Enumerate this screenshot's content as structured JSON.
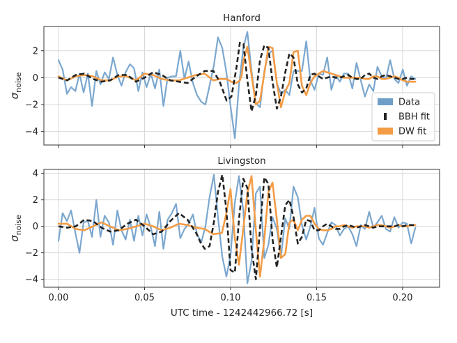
{
  "chart_data": [
    {
      "type": "line",
      "title": "Hanford",
      "ylabel_main": "σ",
      "ylabel_sub": "noise",
      "ylim": [
        -5.0,
        3.8
      ],
      "yticks": [
        -4,
        -2,
        0,
        2
      ],
      "xlim": [
        -0.0085,
        0.2215
      ],
      "xticks": [
        0.0,
        0.05,
        0.1,
        0.15,
        0.2
      ],
      "grid": true,
      "legend": {
        "placement": "lower-right",
        "entries": [
          {
            "label": "Data",
            "color": "#6f9ec9",
            "style": "patch"
          },
          {
            "label": "BBH fit",
            "color": "#222222",
            "style": "dashed"
          },
          {
            "label": "DW fit",
            "color": "#f39c45",
            "style": "patch"
          }
        ]
      },
      "series": [
        {
          "name": "Data",
          "color": "#7ba7cf",
          "width": 2.2,
          "dash": "",
          "x": [
            0.0,
            0.0024,
            0.0049,
            0.0073,
            0.0098,
            0.0122,
            0.0146,
            0.0171,
            0.0195,
            0.022,
            0.0244,
            0.0268,
            0.0293,
            0.0317,
            0.0342,
            0.0366,
            0.039,
            0.0415,
            0.0439,
            0.0464,
            0.0488,
            0.0512,
            0.0537,
            0.0561,
            0.0586,
            0.061,
            0.0634,
            0.0659,
            0.0683,
            0.0708,
            0.0732,
            0.0756,
            0.0781,
            0.0805,
            0.083,
            0.0854,
            0.0878,
            0.0903,
            0.0927,
            0.0952,
            0.0976,
            0.1,
            0.1025,
            0.1049,
            0.1074,
            0.1098,
            0.1122,
            0.1147,
            0.1171,
            0.1196,
            0.122,
            0.1244,
            0.1269,
            0.1293,
            0.1318,
            0.1342,
            0.1366,
            0.1391,
            0.1415,
            0.144,
            0.1464,
            0.1488,
            0.1513,
            0.1537,
            0.1562,
            0.1586,
            0.161,
            0.1635,
            0.1659,
            0.1684,
            0.1708,
            0.1732,
            0.1757,
            0.1781,
            0.1806,
            0.183,
            0.1854,
            0.1879,
            0.1903,
            0.1928,
            0.1952,
            0.1976,
            0.2001,
            0.2025,
            0.205,
            0.2074
          ],
          "y": [
            1.3,
            0.6,
            -1.2,
            -0.7,
            -1.0,
            0.3,
            -1.1,
            0.3,
            -2.1,
            0.5,
            -0.5,
            0.4,
            -0.1,
            1.5,
            0.2,
            -0.6,
            0.4,
            1.0,
            0.7,
            -1.0,
            0.4,
            -0.7,
            0.3,
            -0.8,
            0.6,
            -2.1,
            0.0,
            0.1,
            0.1,
            2.0,
            -0.1,
            1.2,
            -0.4,
            -1.3,
            -1.8,
            -2.0,
            -0.6,
            0.9,
            3.0,
            2.2,
            0.4,
            -2.1,
            -4.5,
            -0.6,
            2.2,
            3.4,
            0.5,
            -1.9,
            -2.2,
            0.5,
            1.8,
            2.0,
            -0.4,
            -1.2,
            -0.9,
            -1.3,
            0.5,
            0.5,
            0.5,
            2.7,
            -0.2,
            -0.9,
            0.3,
            0.2,
            1.5,
            -0.9,
            0.2,
            -0.3,
            0.3,
            0.3,
            -0.8,
            1.1,
            -0.2,
            -1.4,
            -0.5,
            -1.0,
            0.8,
            0.1,
            -0.1,
            1.3,
            -0.1,
            -0.4,
            0.6,
            -0.6,
            0.1,
            -0.1
          ]
        },
        {
          "name": "DW fit",
          "color": "#f39c45",
          "width": 2.6,
          "dash": "",
          "x": [
            0.0,
            0.005,
            0.01,
            0.015,
            0.02,
            0.025,
            0.03,
            0.035,
            0.04,
            0.045,
            0.05,
            0.055,
            0.06,
            0.065,
            0.07,
            0.075,
            0.08,
            0.085,
            0.09,
            0.0937,
            0.0977,
            0.1005,
            0.1034,
            0.1054,
            0.1065,
            0.1075,
            0.1098,
            0.1122,
            0.1147,
            0.1171,
            0.1196,
            0.122,
            0.1244,
            0.1269,
            0.1293,
            0.1318,
            0.1342,
            0.1366,
            0.1391,
            0.1415,
            0.144,
            0.1464,
            0.1488,
            0.1513,
            0.1537,
            0.1562,
            0.1586,
            0.161,
            0.1635,
            0.1659,
            0.1684,
            0.1708,
            0.1732,
            0.1757,
            0.1781,
            0.1806,
            0.183,
            0.1854,
            0.1879,
            0.1903,
            0.1928,
            0.1952,
            0.1976,
            0.2001,
            0.2025,
            0.205,
            0.2074
          ],
          "y": [
            0.1,
            -0.2,
            0.1,
            0.2,
            0.1,
            -0.2,
            -0.2,
            0.1,
            0.1,
            -0.2,
            0.3,
            0.2,
            -0.1,
            -0.2,
            -0.2,
            0.0,
            0.2,
            0.3,
            -0.2,
            -0.1,
            -0.1,
            -0.3,
            -0.4,
            -0.2,
            0.2,
            1.3,
            2.3,
            0.2,
            -2.0,
            -1.7,
            0.3,
            2.3,
            2.2,
            -0.4,
            -2.2,
            -1.0,
            -0.4,
            1.9,
            2.0,
            -0.6,
            -1.3,
            -0.4,
            0.1,
            0.3,
            0.5,
            0.4,
            0.3,
            0.2,
            0.1,
            0.0,
            0.0,
            0.0,
            0.0,
            0.0,
            -0.1,
            -0.1,
            0.1,
            0.1,
            -0.1,
            -0.1,
            0.0,
            0.1,
            0.0,
            -0.2,
            -0.3,
            -0.3,
            -0.3
          ]
        },
        {
          "name": "BBH fit",
          "color": "#222222",
          "width": 2.6,
          "dash": "7,4",
          "x": [
            0.0,
            0.005,
            0.01,
            0.015,
            0.02,
            0.025,
            0.03,
            0.035,
            0.04,
            0.045,
            0.05,
            0.055,
            0.06,
            0.065,
            0.07,
            0.075,
            0.08,
            0.085,
            0.09,
            0.0937,
            0.0977,
            0.1005,
            0.1034,
            0.1054,
            0.1075,
            0.1098,
            0.1122,
            0.1147,
            0.1171,
            0.1196,
            0.122,
            0.1244,
            0.1269,
            0.1293,
            0.1318,
            0.1342,
            0.1366,
            0.1391,
            0.1415,
            0.144,
            0.1464,
            0.1488,
            0.1513,
            0.1537,
            0.1562,
            0.1586,
            0.161,
            0.1635,
            0.1659,
            0.1684,
            0.1708,
            0.1732,
            0.1757,
            0.1781,
            0.1806,
            0.183,
            0.1854,
            0.1879,
            0.1903,
            0.1928,
            0.1952,
            0.1976,
            0.2001,
            0.2025,
            0.205,
            0.2074
          ],
          "y": [
            0.0,
            -0.2,
            0.2,
            0.3,
            -0.1,
            -0.3,
            -0.2,
            0.2,
            0.2,
            -0.3,
            0.0,
            0.4,
            0.2,
            -0.2,
            -0.3,
            -0.4,
            0.1,
            0.5,
            0.5,
            -0.3,
            -1.7,
            -1.4,
            0.7,
            2.6,
            2.5,
            -0.2,
            -2.5,
            -1.3,
            1.3,
            2.4,
            2.2,
            -0.3,
            -2.3,
            -1.4,
            0.4,
            1.8,
            1.5,
            -0.5,
            -1.1,
            -0.8,
            0.2,
            0.3,
            0.1,
            -0.1,
            0.0,
            0.1,
            0.0,
            0.0,
            0.1,
            0.2,
            0.0,
            -0.1,
            -0.1,
            0.2,
            0.3,
            0.0,
            -0.1,
            0.1,
            0.2,
            0.1,
            0.0,
            -0.1,
            -0.1,
            0.0,
            -0.1,
            -0.1
          ]
        }
      ]
    },
    {
      "type": "line",
      "title": "Livingston",
      "ylabel_main": "σ",
      "ylabel_sub": "noise",
      "ylim": [
        -4.6,
        4.3
      ],
      "yticks": [
        -4,
        -2,
        0,
        2,
        4
      ],
      "xlim": [
        -0.0085,
        0.2215
      ],
      "xticks": [
        0.0,
        0.05,
        0.1,
        0.15,
        0.2
      ],
      "xticklabels": [
        "0.00",
        "0.05",
        "0.10",
        "0.15",
        "0.20"
      ],
      "xlabel": "UTC time - 1242442966.72 [s]",
      "grid": true,
      "series": [
        {
          "name": "Data",
          "color": "#7ba7cf",
          "width": 2.2,
          "dash": "",
          "x": [
            0.0,
            0.0024,
            0.0049,
            0.0073,
            0.0098,
            0.0122,
            0.0146,
            0.0171,
            0.0195,
            0.022,
            0.0244,
            0.0268,
            0.0293,
            0.0317,
            0.0342,
            0.0366,
            0.039,
            0.0415,
            0.0439,
            0.0464,
            0.0488,
            0.0512,
            0.0537,
            0.0561,
            0.0586,
            0.061,
            0.0634,
            0.0659,
            0.0683,
            0.0708,
            0.0732,
            0.0756,
            0.0781,
            0.0805,
            0.083,
            0.0854,
            0.0878,
            0.0903,
            0.0927,
            0.0952,
            0.0976,
            0.1,
            0.1025,
            0.1049,
            0.1074,
            0.1098,
            0.1122,
            0.1147,
            0.1171,
            0.1196,
            0.122,
            0.1244,
            0.1269,
            0.1293,
            0.1318,
            0.1342,
            0.1366,
            0.1391,
            0.1415,
            0.144,
            0.1464,
            0.1488,
            0.1513,
            0.1537,
            0.1562,
            0.1586,
            0.161,
            0.1635,
            0.1659,
            0.1684,
            0.1708,
            0.1732,
            0.1757,
            0.1781,
            0.1806,
            0.183,
            0.1854,
            0.1879,
            0.1903,
            0.1928,
            0.1952,
            0.1976,
            0.2001,
            0.2025,
            0.205,
            0.2074
          ],
          "y": [
            -1.1,
            1.0,
            0.4,
            1.2,
            -0.5,
            -2.0,
            0.3,
            0.4,
            -0.8,
            2.0,
            -0.8,
            0.8,
            0.3,
            -1.4,
            1.2,
            -0.3,
            -1.0,
            0.5,
            -1.1,
            0.8,
            -0.7,
            0.9,
            -0.1,
            -1.5,
            1.1,
            -1.7,
            0.5,
            1.0,
            1.7,
            -0.9,
            -0.2,
            0.2,
            0.9,
            -0.6,
            -1.2,
            0.0,
            2.2,
            3.9,
            0.7,
            -2.3,
            -3.8,
            -2.2,
            1.8,
            3.8,
            1.2,
            -4.3,
            -2.6,
            2.5,
            3.0,
            -2.4,
            -1.4,
            0.7,
            -0.2,
            -2.3,
            0.6,
            -0.2,
            3.0,
            2.2,
            0.1,
            -1.0,
            0.0,
            1.4,
            -0.9,
            -1.4,
            -0.5,
            0.3,
            0.1,
            -0.7,
            -0.2,
            0.0,
            -0.6,
            -1.5,
            0.1,
            -0.2,
            1.1,
            -0.1,
            0.3,
            0.8,
            -0.2,
            -0.4,
            0.7,
            -0.1,
            0.3,
            0.2,
            -1.3,
            -0.1
          ]
        },
        {
          "name": "DW fit",
          "color": "#f39c45",
          "width": 2.6,
          "dash": "",
          "x": [
            0.0,
            0.005,
            0.01,
            0.015,
            0.02,
            0.025,
            0.03,
            0.035,
            0.04,
            0.045,
            0.05,
            0.055,
            0.06,
            0.065,
            0.07,
            0.075,
            0.08,
            0.085,
            0.09,
            0.095,
            0.0976,
            0.1,
            0.1025,
            0.1049,
            0.1074,
            0.1098,
            0.1122,
            0.1147,
            0.1171,
            0.1196,
            0.122,
            0.1244,
            0.1269,
            0.1293,
            0.1318,
            0.1342,
            0.1366,
            0.1391,
            0.1415,
            0.144,
            0.1464,
            0.1488,
            0.1513,
            0.1537,
            0.1562,
            0.1586,
            0.161,
            0.1635,
            0.1659,
            0.1684,
            0.1708,
            0.1732,
            0.1757,
            0.1781,
            0.1806,
            0.183,
            0.1854,
            0.1879,
            0.1903,
            0.1928,
            0.1952,
            0.1976,
            0.2001,
            0.2025,
            0.205,
            0.2074
          ],
          "y": [
            0.2,
            0.2,
            -0.2,
            -0.3,
            0.0,
            0.3,
            0.0,
            -0.3,
            -0.2,
            0.0,
            0.2,
            0.0,
            -0.3,
            -0.1,
            0.2,
            0.1,
            -0.1,
            -0.2,
            -0.6,
            -0.5,
            1.0,
            2.8,
            -0.9,
            -2.9,
            -0.2,
            2.5,
            3.8,
            -0.3,
            -3.8,
            -1.0,
            2.6,
            3.3,
            0.5,
            -2.4,
            -2.1,
            0.3,
            0.5,
            -0.3,
            0.5,
            0.8,
            0.8,
            0.2,
            -0.2,
            -0.3,
            -0.3,
            -0.2,
            0.0,
            0.0,
            0.1,
            0.0,
            -0.1,
            0.0,
            0.0,
            0.0,
            -0.1,
            0.0,
            0.1,
            0.1,
            0.0,
            -0.1,
            0.0,
            0.1,
            0.0,
            0.0,
            0.1,
            0.1
          ]
        },
        {
          "name": "BBH fit",
          "color": "#222222",
          "width": 2.6,
          "dash": "7,4",
          "x": [
            0.0,
            0.005,
            0.01,
            0.015,
            0.02,
            0.025,
            0.03,
            0.035,
            0.04,
            0.045,
            0.05,
            0.055,
            0.06,
            0.065,
            0.07,
            0.075,
            0.08,
            0.0825,
            0.085,
            0.0878,
            0.0903,
            0.0927,
            0.0952,
            0.0976,
            0.1,
            0.1025,
            0.1049,
            0.1074,
            0.1098,
            0.1122,
            0.1147,
            0.1171,
            0.1196,
            0.122,
            0.1244,
            0.1269,
            0.1293,
            0.1318,
            0.1342,
            0.1366,
            0.1391,
            0.1415,
            0.144,
            0.1464,
            0.1488,
            0.1513,
            0.1537,
            0.1562,
            0.1586,
            0.161,
            0.1635,
            0.1659,
            0.1684,
            0.1708,
            0.1732,
            0.1757,
            0.1781,
            0.1806,
            0.183,
            0.1854,
            0.1879,
            0.1903,
            0.1928,
            0.1952,
            0.1976,
            0.2001,
            0.2025,
            0.205,
            0.2074
          ],
          "y": [
            0.0,
            -0.1,
            0.0,
            0.5,
            0.4,
            -0.1,
            -0.4,
            -0.3,
            0.2,
            0.5,
            0.0,
            -0.6,
            -0.4,
            0.4,
            1.0,
            0.5,
            -0.5,
            -1.2,
            -1.7,
            -1.5,
            0.3,
            2.6,
            3.9,
            1.2,
            -3.3,
            -3.5,
            0.5,
            3.6,
            2.9,
            -1.7,
            -4.0,
            -0.2,
            3.7,
            3.2,
            -1.0,
            -3.1,
            -0.8,
            1.6,
            2.0,
            0.7,
            -1.3,
            -0.8,
            0.5,
            0.4,
            -0.3,
            -0.3,
            0.0,
            0.2,
            0.0,
            -0.2,
            -0.2,
            0.0,
            0.1,
            0.0,
            -0.1,
            0.0,
            0.1,
            0.0,
            -0.1,
            0.0,
            0.0,
            0.0,
            0.0,
            0.0,
            0.1,
            0.0,
            0.1,
            0.1,
            0.1
          ]
        }
      ]
    }
  ]
}
